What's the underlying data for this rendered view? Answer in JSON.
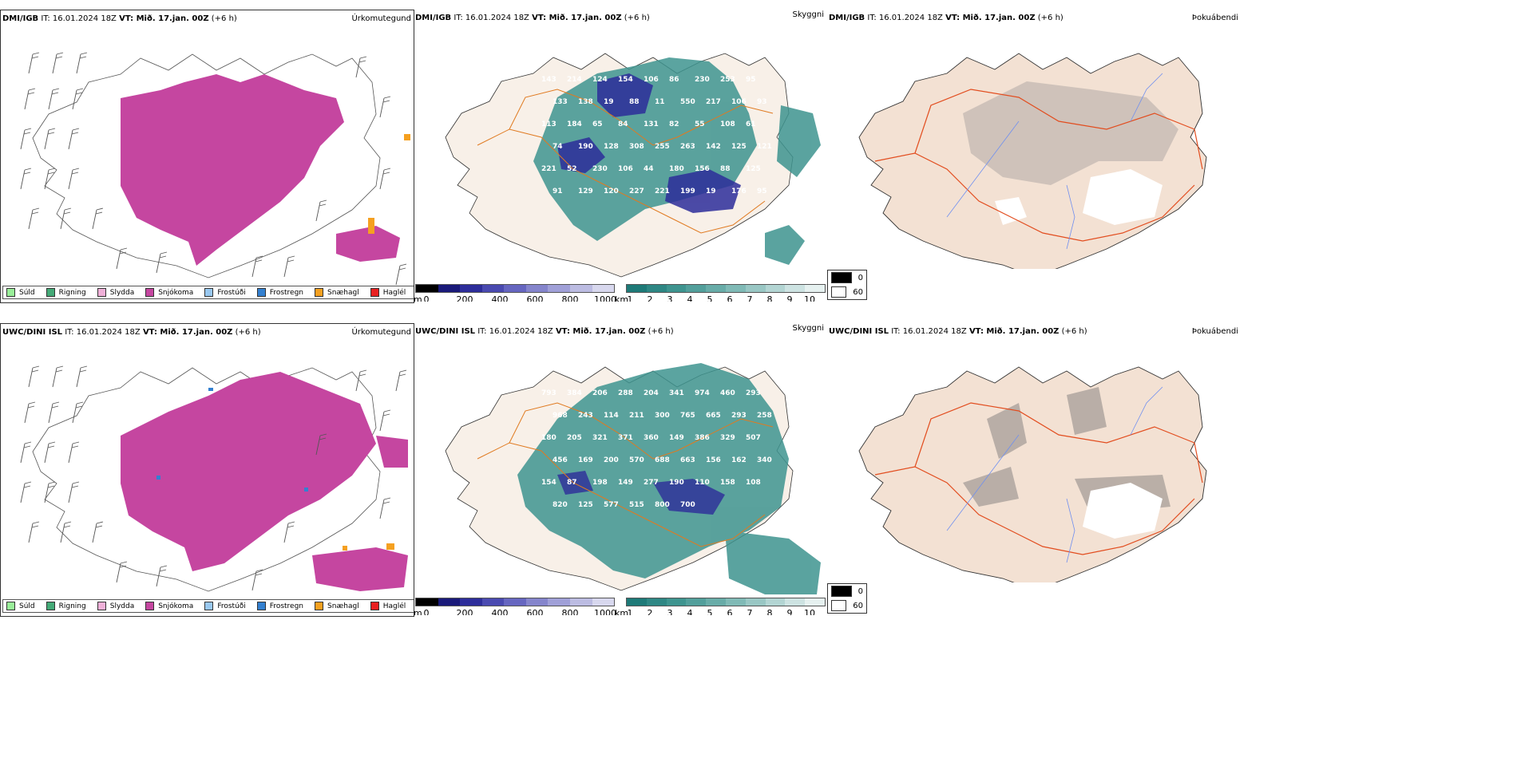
{
  "colors": {
    "precip_type": [
      "#99ee99",
      "#44aa77",
      "#f0b0d8",
      "#c546a0",
      "#99c8f0",
      "#3380d0",
      "#f5a020",
      "#e82020"
    ],
    "cloud_base": [
      "#000000",
      "#1a1a7a",
      "#2d2d9a",
      "#4a4ab0",
      "#6666c0",
      "#8585cc",
      "#a0a0d8",
      "#bcbce2",
      "#d8d8ee"
    ],
    "visibility": [
      "#1e7a78",
      "#2e8784",
      "#3e948f",
      "#529f9b",
      "#68aca8",
      "#80bab6",
      "#99c7c4",
      "#b3d5d3",
      "#cde3e2",
      "#e6f1f0"
    ],
    "land": "#f3e1d3",
    "roads": "#e85a20",
    "rivers": "#6f8ff0"
  },
  "icons": [
    "wind-barb-icon",
    "legend-swatch-icon"
  ],
  "rows": [
    {
      "model": "DMI/IGB",
      "it_label": "IT:",
      "it_value": "16.01.2024 18Z",
      "vt_label": "VT: Mið. 17.jan. 00Z",
      "lead": "(+6 h)",
      "cloud_labels": [
        "143",
        "214",
        "124",
        "154",
        "106",
        "86",
        "230",
        "253",
        "95",
        "133",
        "138",
        "19",
        "88",
        "11",
        "550",
        "217",
        "106",
        "93",
        "113",
        "184",
        "65",
        "84",
        "131",
        "82",
        "55",
        "108",
        "61",
        "74",
        "190",
        "128",
        "308",
        "255",
        "263",
        "142",
        "125",
        "121",
        "221",
        "52",
        "230",
        "106",
        "44",
        "180",
        "156",
        "88",
        "125",
        "91",
        "129",
        "120",
        "227",
        "221",
        "199",
        "19",
        "176",
        "95"
      ]
    },
    {
      "model": "UWC/DINI ISL",
      "it_label": "IT:",
      "it_value": "16.01.2024 18Z",
      "vt_label": "VT: Mið. 17.jan. 00Z",
      "lead": "(+6 h)",
      "cloud_labels": [
        "793",
        "384",
        "206",
        "288",
        "204",
        "341",
        "974",
        "460",
        "293",
        "968",
        "243",
        "114",
        "211",
        "300",
        "765",
        "665",
        "293",
        "258",
        "180",
        "205",
        "321",
        "371",
        "360",
        "149",
        "386",
        "329",
        "507",
        "456",
        "169",
        "200",
        "570",
        "688",
        "663",
        "156",
        "162",
        "340",
        "154",
        "87",
        "198",
        "149",
        "277",
        "190",
        "110",
        "158",
        "108",
        "820",
        "125",
        "577",
        "515",
        "800",
        "700"
      ]
    }
  ],
  "titles": {
    "precip_type": "Úrkomutegund",
    "cloud_base": "Skyggni",
    "fog": "Þokuábendi"
  },
  "precip_legend": [
    "Súld",
    "Rigning",
    "Slydda",
    "Snjókoma",
    "Frostúði",
    "Frostregn",
    "Snæhagl",
    "Haglél"
  ],
  "cloud_bar": {
    "unit": "m",
    "ticks": [
      "0",
      "200",
      "400",
      "600",
      "800",
      "1000"
    ]
  },
  "vis_bar": {
    "unit": "km",
    "ticks": [
      "1",
      "2",
      "3",
      "4",
      "5",
      "6",
      "7",
      "8",
      "9",
      "10"
    ]
  },
  "fog_legend": [
    "0",
    "60"
  ]
}
